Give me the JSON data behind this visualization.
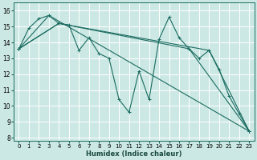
{
  "xlabel": "Humidex (Indice chaleur)",
  "bg_color": "#cce8e4",
  "line_color": "#1a6b60",
  "grid_color": "#b0d8d0",
  "xlim": [
    -0.5,
    23.5
  ],
  "ylim": [
    7.8,
    16.5
  ],
  "yticks": [
    8,
    9,
    10,
    11,
    12,
    13,
    14,
    15,
    16
  ],
  "xticks": [
    0,
    1,
    2,
    3,
    4,
    5,
    6,
    7,
    8,
    9,
    10,
    11,
    12,
    13,
    14,
    15,
    16,
    17,
    18,
    19,
    20,
    21,
    22,
    23
  ],
  "series1": [
    [
      0,
      13.6
    ],
    [
      1,
      14.9
    ],
    [
      2,
      15.5
    ],
    [
      3,
      15.7
    ],
    [
      4,
      15.2
    ],
    [
      5,
      15.1
    ],
    [
      6,
      13.5
    ],
    [
      7,
      14.3
    ],
    [
      8,
      13.3
    ],
    [
      9,
      13.0
    ],
    [
      10,
      10.4
    ],
    [
      11,
      9.6
    ],
    [
      12,
      12.2
    ],
    [
      13,
      10.4
    ],
    [
      14,
      14.2
    ],
    [
      15,
      15.6
    ],
    [
      16,
      14.3
    ],
    [
      17,
      13.6
    ],
    [
      18,
      13.0
    ],
    [
      19,
      13.5
    ],
    [
      20,
      12.3
    ],
    [
      21,
      10.6
    ],
    [
      22,
      9.5
    ],
    [
      23,
      8.4
    ]
  ],
  "series2": [
    [
      0,
      13.6
    ],
    [
      3,
      15.7
    ],
    [
      23,
      8.4
    ]
  ],
  "series3": [
    [
      0,
      13.6
    ],
    [
      4,
      15.2
    ],
    [
      17,
      13.6
    ],
    [
      23,
      8.4
    ]
  ],
  "series4": [
    [
      0,
      13.6
    ],
    [
      4,
      15.2
    ],
    [
      19,
      13.5
    ],
    [
      23,
      8.4
    ]
  ]
}
